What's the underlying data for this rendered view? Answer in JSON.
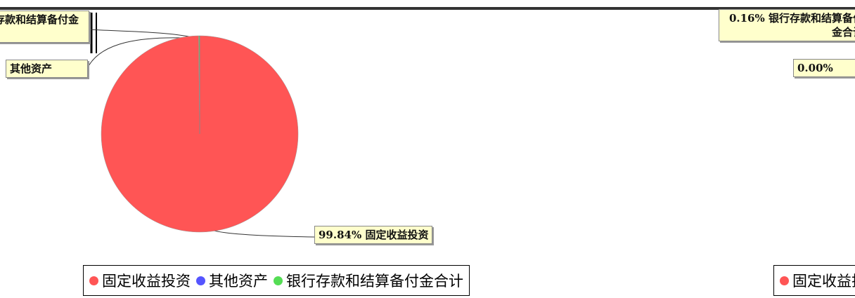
{
  "chart_data": {
    "type": "pie",
    "categories": [
      "固定收益投资",
      "其他资产",
      "银行存款和结算备付金合计"
    ],
    "values": [
      99.84,
      0.0,
      0.16
    ],
    "value_labels": [
      "99.84%",
      "0.00%",
      "0.16%"
    ],
    "colors": [
      "#ff5555",
      "#5555ff",
      "#55dd55"
    ]
  }
}
